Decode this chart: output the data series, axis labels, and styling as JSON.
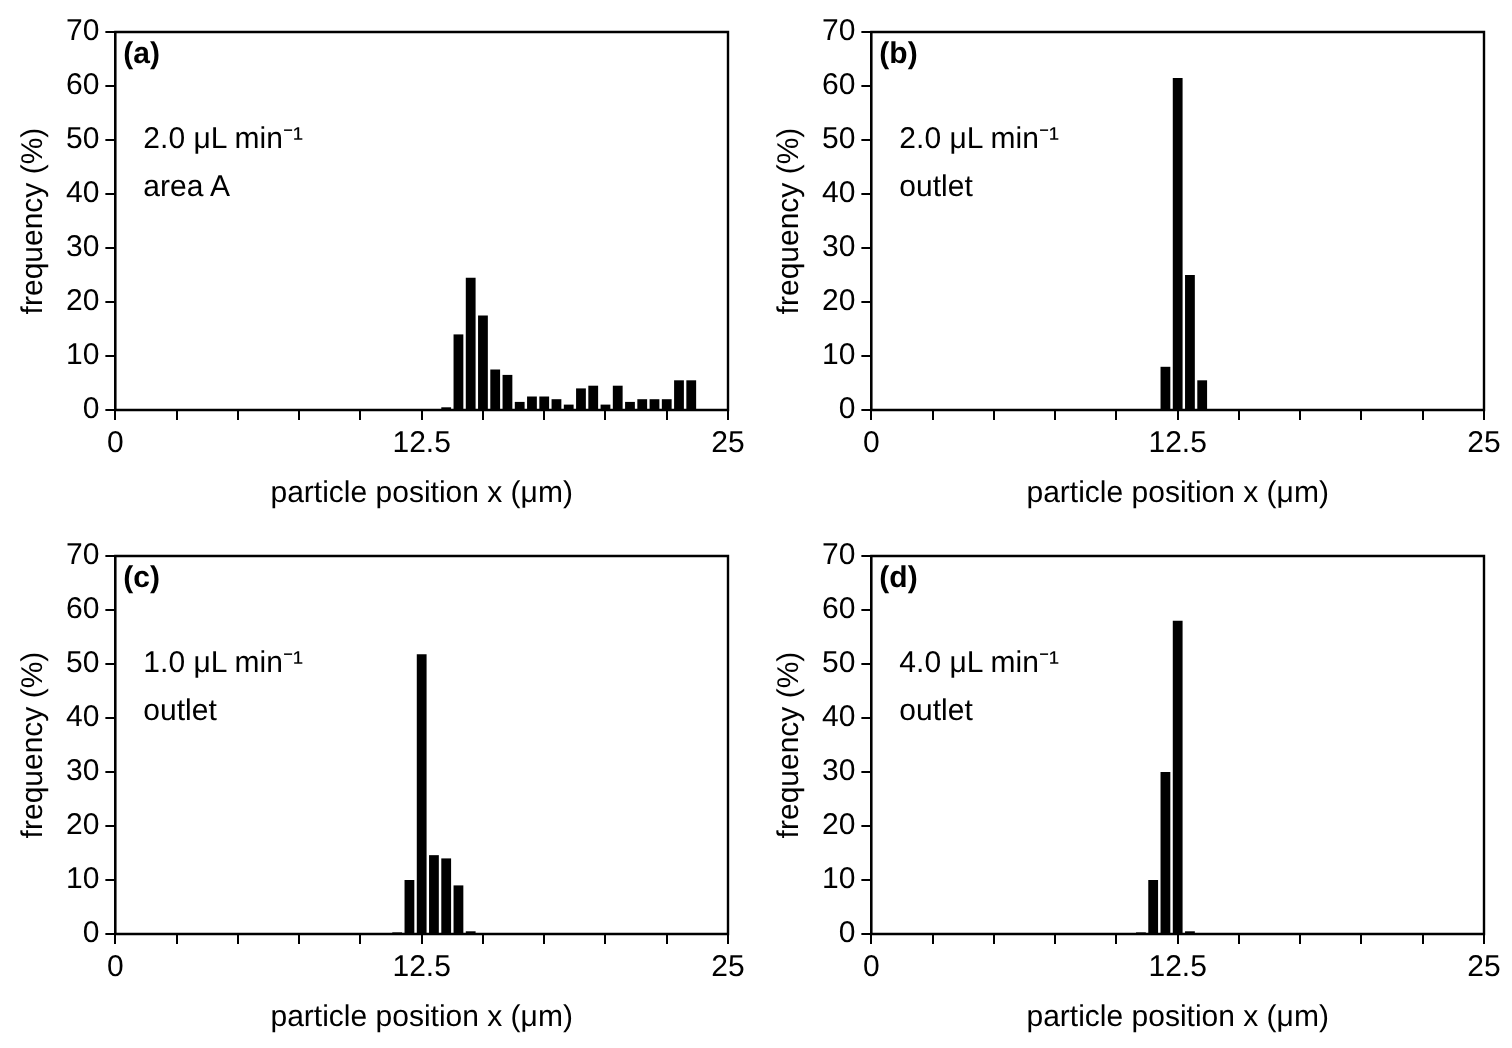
{
  "chart_data": [
    {
      "type": "histogram",
      "annotations": [
        "(a)",
        "2.0 μL min⁻¹",
        "area A"
      ],
      "xlabel": "particle position x (μm)",
      "ylabel": "frequency (%)",
      "color": "#000000",
      "bins": [
        13.25,
        13.75,
        14.25,
        14.75,
        15.25,
        15.75,
        16.25,
        16.75,
        17.25,
        17.75,
        18.25,
        18.75,
        19.25,
        19.75,
        20.25,
        20.75,
        21.25,
        21.75,
        22.25,
        22.75,
        23.25,
        23.75
      ],
      "values": [
        0.5,
        14,
        24.5,
        17.5,
        7.5,
        6.5,
        1.5,
        2.5,
        2.5,
        2,
        1,
        4,
        4.5,
        1,
        4.5,
        1.5,
        2,
        2,
        2,
        5.5,
        5.5
      ],
      "xlim": [
        0,
        25
      ],
      "xticks": [
        0,
        {
          "value": 2.5,
          "label": null
        },
        {
          "value": 5,
          "label": null
        },
        {
          "value": 7.5,
          "label": null
        },
        {
          "value": 10,
          "label": null
        },
        12.5,
        {
          "value": 15,
          "label": null
        },
        {
          "value": 17.5,
          "label": null
        },
        {
          "value": 20,
          "label": null
        },
        {
          "value": 22.5,
          "label": null
        },
        25
      ],
      "ylim": [
        0,
        70
      ],
      "yticks": [
        0,
        10,
        20,
        30,
        40,
        50,
        60,
        70
      ]
    },
    {
      "type": "histogram",
      "annotations": [
        "(b)",
        "2.0 μL min⁻¹",
        "outlet"
      ],
      "xlabel": "particle position x (μm)",
      "ylabel": "frequency (%)",
      "color": "#000000",
      "bins": [
        11.75,
        12.25,
        12.75,
        13.25,
        13.75
      ],
      "values": [
        8,
        61.5,
        25,
        5.5
      ],
      "xlim": [
        0,
        25
      ],
      "xticks": [
        0,
        {
          "value": 2.5,
          "label": null
        },
        {
          "value": 5,
          "label": null
        },
        {
          "value": 7.5,
          "label": null
        },
        {
          "value": 10,
          "label": null
        },
        12.5,
        {
          "value": 15,
          "label": null
        },
        {
          "value": 17.5,
          "label": null
        },
        {
          "value": 20,
          "label": null
        },
        {
          "value": 22.5,
          "label": null
        },
        25
      ],
      "ylim": [
        0,
        70
      ],
      "yticks": [
        0,
        10,
        20,
        30,
        40,
        50,
        60,
        70
      ]
    },
    {
      "type": "histogram",
      "annotations": [
        "(c)",
        "1.0 μL min⁻¹",
        "outlet"
      ],
      "xlabel": "particle position x (μm)",
      "ylabel": "frequency (%)",
      "color": "#000000",
      "bins": [
        11.25,
        11.75,
        12.25,
        12.75,
        13.25,
        13.75,
        14.25,
        14.75
      ],
      "values": [
        0.3,
        10,
        51.8,
        14.6,
        14,
        9,
        0.5
      ],
      "xlim": [
        0,
        25
      ],
      "xticks": [
        0,
        {
          "value": 2.5,
          "label": null
        },
        {
          "value": 5,
          "label": null
        },
        {
          "value": 7.5,
          "label": null
        },
        {
          "value": 10,
          "label": null
        },
        12.5,
        {
          "value": 15,
          "label": null
        },
        {
          "value": 17.5,
          "label": null
        },
        {
          "value": 20,
          "label": null
        },
        {
          "value": 22.5,
          "label": null
        },
        25
      ],
      "ylim": [
        0,
        70
      ],
      "yticks": [
        0,
        10,
        20,
        30,
        40,
        50,
        60,
        70
      ]
    },
    {
      "type": "histogram",
      "annotations": [
        "(d)",
        "4.0 μL min⁻¹",
        "outlet"
      ],
      "xlabel": "particle position x (μm)",
      "ylabel": "frequency (%)",
      "color": "#000000",
      "bins": [
        10.75,
        11.25,
        11.75,
        12.25,
        12.75,
        13.25
      ],
      "values": [
        0.3,
        10,
        30,
        58,
        0.5
      ],
      "xlim": [
        0,
        25
      ],
      "xticks": [
        0,
        {
          "value": 2.5,
          "label": null
        },
        {
          "value": 5,
          "label": null
        },
        {
          "value": 7.5,
          "label": null
        },
        {
          "value": 10,
          "label": null
        },
        12.5,
        {
          "value": 15,
          "label": null
        },
        {
          "value": 17.5,
          "label": null
        },
        {
          "value": 20,
          "label": null
        },
        {
          "value": 22.5,
          "label": null
        },
        25
      ],
      "ylim": [
        0,
        70
      ],
      "yticks": [
        0,
        10,
        20,
        30,
        40,
        50,
        60,
        70
      ]
    }
  ]
}
